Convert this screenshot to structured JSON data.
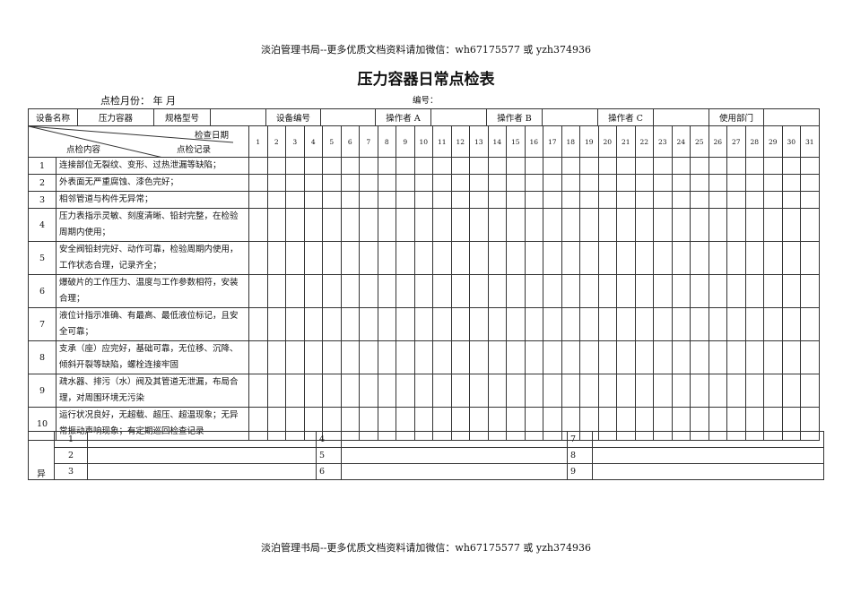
{
  "header_text": "淡泊管理书局--更多优质文档资料请加微信：wh67175577 或 yzh374936",
  "footer_text": "淡泊管理书局--更多优质文档资料请加微信：wh67175577 或 yzh374936",
  "title": "压力容器日常点检表",
  "month_label": "点检月份：  年   月",
  "number_label": "编号：",
  "info_row": [
    "设备名称",
    "压力容器",
    "规格型号",
    "",
    "设备编号",
    "",
    "操作者 A",
    "",
    "操作者 B",
    "",
    "操作者 C",
    "",
    "使用部门",
    ""
  ],
  "diag": {
    "date": "检查日期",
    "content": "点检内容",
    "record": "点检记录"
  },
  "days": [
    "1",
    "2",
    "3",
    "4",
    "5",
    "6",
    "7",
    "8",
    "9",
    "10",
    "11",
    "12",
    "13",
    "14",
    "15",
    "16",
    "17",
    "18",
    "19",
    "20",
    "21",
    "22",
    "23",
    "24",
    "25",
    "26",
    "27",
    "28",
    "29",
    "30",
    "31"
  ],
  "items": [
    {
      "no": "1",
      "text": "连接部位无裂纹、变形、过热泄漏等缺陷；"
    },
    {
      "no": "2",
      "text": "外表面无严重腐蚀、漆色完好；"
    },
    {
      "no": "3",
      "text": "相邻管道与构件无异常；"
    },
    {
      "no": "4",
      "text": "压力表指示灵敏、刻度清晰、铅封完整，在检验周期内使用；"
    },
    {
      "no": "5",
      "text": "安全阀铅封完好、动作可靠，检验周期内使用，工作状态合理，记录齐全；"
    },
    {
      "no": "6",
      "text": "爆破片的工作压力、温度与工作参数相符，安装合理；"
    },
    {
      "no": "7",
      "text": "液位计指示准确、有最高、最低液位标记，且安全可靠；"
    },
    {
      "no": "8",
      "text": "支承（座）应完好，基础可靠，无位移、沉降、倾斜开裂等缺陷，螺栓连接牢固"
    },
    {
      "no": "9",
      "text": "疏水器、排污（水）阀及其管道无泄漏，布局合理，对周围环境无污染"
    },
    {
      "no": "10",
      "text": "运行状况良好，无超载、超压、超温现象；无异常振动声响现象；有定期巡回检查记录"
    }
  ],
  "exceptions": {
    "label": "异",
    "numbers": [
      [
        "1",
        "4",
        "7"
      ],
      [
        "2",
        "5",
        "8"
      ],
      [
        "3",
        "6",
        "9"
      ]
    ]
  }
}
